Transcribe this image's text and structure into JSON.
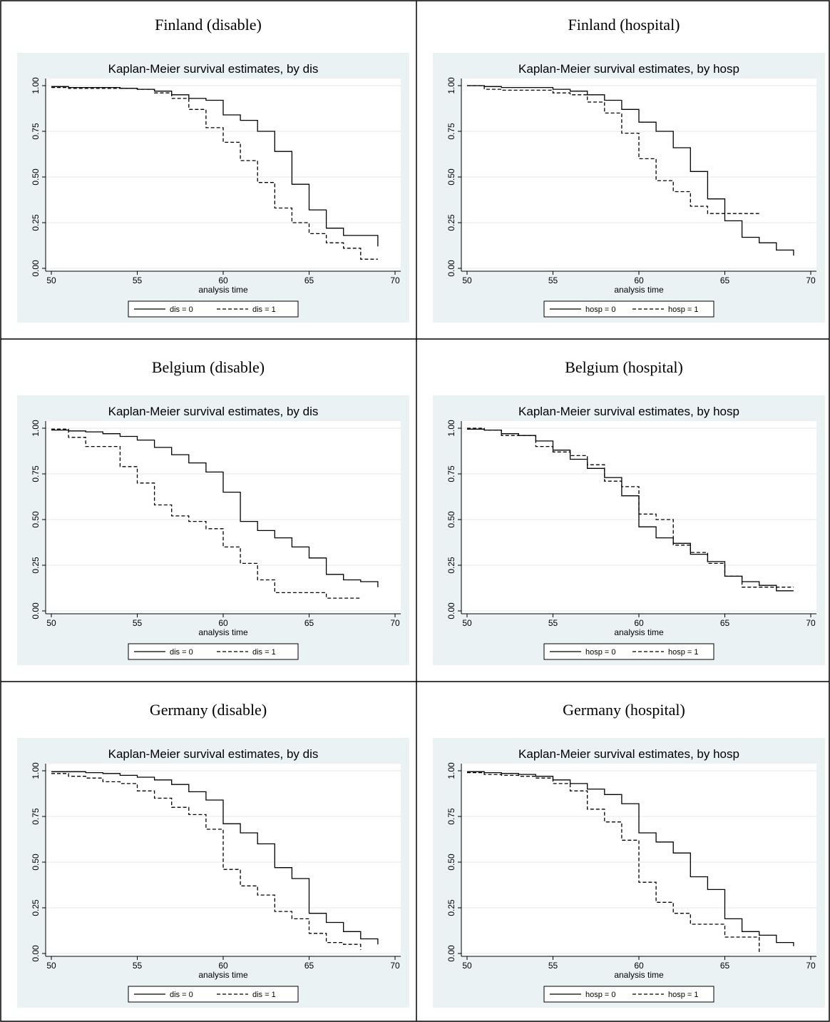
{
  "panels": [
    {
      "title": "Finland (disable)"
    },
    {
      "title": "Finland (hospital)"
    },
    {
      "title": "Belgium (disable)"
    },
    {
      "title": "Belgium (hospital)"
    },
    {
      "title": "Germany (disable)"
    },
    {
      "title": "Germany (hospital)"
    }
  ],
  "chart_data": [
    {
      "type": "line",
      "title": "Kaplan-Meier survival estimates, by dis",
      "xlabel": "analysis time",
      "ylabel": "",
      "xlim": [
        50,
        70
      ],
      "ylim": [
        0,
        1
      ],
      "xticks": [
        "50",
        "55",
        "60",
        "65",
        "70"
      ],
      "yticks": [
        "0.00",
        "0.25",
        "0.50",
        "0.75",
        "1.00"
      ],
      "grid": true,
      "legend_position": "bottom",
      "series": [
        {
          "name": "dis = 0",
          "style": "solid",
          "x": [
            50,
            51,
            52,
            53,
            54,
            55,
            56,
            57,
            58,
            59,
            60,
            61,
            62,
            63,
            64,
            65,
            66,
            67,
            68,
            69
          ],
          "y": [
            0.995,
            0.99,
            0.99,
            0.99,
            0.985,
            0.98,
            0.97,
            0.95,
            0.93,
            0.92,
            0.84,
            0.81,
            0.75,
            0.64,
            0.46,
            0.32,
            0.22,
            0.18,
            0.18,
            0.12
          ]
        },
        {
          "name": "dis = 1",
          "style": "dashed",
          "x": [
            50,
            51,
            52,
            53,
            54,
            55,
            56,
            57,
            58,
            59,
            60,
            61,
            62,
            63,
            64,
            65,
            66,
            67,
            68,
            69
          ],
          "y": [
            0.99,
            0.985,
            0.985,
            0.985,
            0.985,
            0.98,
            0.96,
            0.93,
            0.87,
            0.77,
            0.69,
            0.59,
            0.47,
            0.33,
            0.25,
            0.19,
            0.14,
            0.11,
            0.05,
            0.05
          ]
        }
      ]
    },
    {
      "type": "line",
      "title": "Kaplan-Meier survival estimates, by hosp",
      "xlabel": "analysis time",
      "ylabel": "",
      "xlim": [
        50,
        70
      ],
      "ylim": [
        0,
        1
      ],
      "xticks": [
        "50",
        "55",
        "60",
        "65",
        "70"
      ],
      "yticks": [
        "0.00",
        "0.25",
        "0.50",
        "0.75",
        "1.00"
      ],
      "grid": true,
      "legend_position": "bottom",
      "series": [
        {
          "name": "hosp = 0",
          "style": "solid",
          "x": [
            50,
            51,
            52,
            53,
            54,
            55,
            56,
            57,
            58,
            59,
            60,
            61,
            62,
            63,
            64,
            65,
            66,
            67,
            68,
            69
          ],
          "y": [
            1.0,
            0.995,
            0.99,
            0.99,
            0.99,
            0.98,
            0.97,
            0.95,
            0.92,
            0.87,
            0.8,
            0.75,
            0.66,
            0.53,
            0.38,
            0.26,
            0.17,
            0.14,
            0.1,
            0.07
          ]
        },
        {
          "name": "hosp = 1",
          "style": "dashed",
          "x": [
            50,
            51,
            52,
            53,
            54,
            55,
            56,
            57,
            58,
            59,
            60,
            61,
            62,
            63,
            64,
            65,
            66,
            67
          ],
          "y": [
            1.0,
            0.98,
            0.975,
            0.975,
            0.975,
            0.96,
            0.95,
            0.91,
            0.85,
            0.74,
            0.6,
            0.48,
            0.42,
            0.34,
            0.3,
            0.3,
            0.3,
            0.3
          ]
        }
      ]
    },
    {
      "type": "line",
      "title": "Kaplan-Meier survival estimates, by dis",
      "xlabel": "analysis time",
      "ylabel": "",
      "xlim": [
        50,
        70
      ],
      "ylim": [
        0,
        1
      ],
      "xticks": [
        "50",
        "55",
        "60",
        "65",
        "70"
      ],
      "yticks": [
        "0.00",
        "0.25",
        "0.50",
        "0.75",
        "1.00"
      ],
      "grid": true,
      "legend_position": "bottom",
      "series": [
        {
          "name": "dis = 0",
          "style": "solid",
          "x": [
            50,
            51,
            52,
            53,
            54,
            55,
            56,
            57,
            58,
            59,
            60,
            61,
            62,
            63,
            64,
            65,
            66,
            67,
            68,
            69
          ],
          "y": [
            0.99,
            0.985,
            0.98,
            0.97,
            0.955,
            0.935,
            0.895,
            0.855,
            0.81,
            0.76,
            0.65,
            0.49,
            0.44,
            0.4,
            0.35,
            0.29,
            0.2,
            0.17,
            0.16,
            0.13
          ]
        },
        {
          "name": "dis = 1",
          "style": "dashed",
          "x": [
            50,
            51,
            52,
            53,
            54,
            55,
            56,
            57,
            58,
            59,
            60,
            61,
            62,
            63,
            64,
            65,
            66,
            67,
            68
          ],
          "y": [
            0.995,
            0.95,
            0.9,
            0.9,
            0.79,
            0.7,
            0.58,
            0.52,
            0.49,
            0.45,
            0.35,
            0.26,
            0.17,
            0.1,
            0.1,
            0.1,
            0.07,
            0.07,
            0.07
          ]
        }
      ]
    },
    {
      "type": "line",
      "title": "Kaplan-Meier survival estimates, by hosp",
      "xlabel": "analysis time",
      "ylabel": "",
      "xlim": [
        50,
        70
      ],
      "ylim": [
        0,
        1
      ],
      "xticks": [
        "50",
        "55",
        "60",
        "65",
        "70"
      ],
      "yticks": [
        "0.00",
        "0.25",
        "0.50",
        "0.75",
        "1.00"
      ],
      "grid": true,
      "legend_position": "bottom",
      "series": [
        {
          "name": "hosp = 0",
          "style": "solid",
          "x": [
            50,
            51,
            52,
            53,
            54,
            55,
            56,
            57,
            58,
            59,
            60,
            61,
            62,
            63,
            64,
            65,
            66,
            67,
            68,
            69
          ],
          "y": [
            0.995,
            0.99,
            0.97,
            0.96,
            0.93,
            0.88,
            0.83,
            0.78,
            0.73,
            0.63,
            0.46,
            0.4,
            0.37,
            0.31,
            0.27,
            0.19,
            0.16,
            0.14,
            0.11,
            0.11
          ]
        },
        {
          "name": "hosp = 1",
          "style": "dashed",
          "x": [
            50,
            51,
            52,
            53,
            54,
            55,
            56,
            57,
            58,
            59,
            60,
            61,
            62,
            63,
            64,
            65,
            66,
            67,
            68,
            69
          ],
          "y": [
            1.0,
            0.99,
            0.96,
            0.96,
            0.9,
            0.87,
            0.85,
            0.8,
            0.71,
            0.68,
            0.53,
            0.5,
            0.36,
            0.32,
            0.26,
            0.19,
            0.13,
            0.13,
            0.13,
            0.13
          ]
        }
      ]
    },
    {
      "type": "line",
      "title": "Kaplan-Meier survival estimates, by dis",
      "xlabel": "analysis time",
      "ylabel": "",
      "xlim": [
        50,
        70
      ],
      "ylim": [
        0,
        1
      ],
      "xticks": [
        "50",
        "55",
        "60",
        "65",
        "70"
      ],
      "yticks": [
        "0.00",
        "0.25",
        "0.50",
        "0.75",
        "1.00"
      ],
      "grid": true,
      "legend_position": "bottom",
      "series": [
        {
          "name": "dis = 0",
          "style": "solid",
          "x": [
            50,
            51,
            52,
            53,
            54,
            55,
            56,
            57,
            58,
            59,
            60,
            61,
            62,
            63,
            64,
            65,
            66,
            67,
            68,
            69
          ],
          "y": [
            0.995,
            0.995,
            0.99,
            0.985,
            0.975,
            0.965,
            0.95,
            0.925,
            0.885,
            0.84,
            0.71,
            0.66,
            0.6,
            0.47,
            0.41,
            0.22,
            0.17,
            0.12,
            0.08,
            0.05
          ]
        },
        {
          "name": "dis = 1",
          "style": "dashed",
          "x": [
            50,
            51,
            52,
            53,
            54,
            55,
            56,
            57,
            58,
            59,
            60,
            61,
            62,
            63,
            64,
            65,
            66,
            67,
            68
          ],
          "y": [
            0.985,
            0.97,
            0.96,
            0.94,
            0.93,
            0.89,
            0.85,
            0.8,
            0.76,
            0.68,
            0.46,
            0.37,
            0.32,
            0.23,
            0.19,
            0.11,
            0.06,
            0.05,
            0.02
          ]
        }
      ]
    },
    {
      "type": "line",
      "title": "Kaplan-Meier survival estimates, by hosp",
      "xlabel": "analysis time",
      "ylabel": "",
      "xlim": [
        50,
        70
      ],
      "ylim": [
        0,
        1
      ],
      "xticks": [
        "50",
        "55",
        "60",
        "65",
        "70"
      ],
      "yticks": [
        "0.00",
        "0.25",
        "0.50",
        "0.75",
        "1.00"
      ],
      "grid": true,
      "legend_position": "bottom",
      "series": [
        {
          "name": "hosp = 0",
          "style": "solid",
          "x": [
            50,
            51,
            52,
            53,
            54,
            55,
            56,
            57,
            58,
            59,
            60,
            61,
            62,
            63,
            64,
            65,
            66,
            67,
            68,
            69
          ],
          "y": [
            0.995,
            0.99,
            0.985,
            0.98,
            0.97,
            0.95,
            0.93,
            0.9,
            0.87,
            0.82,
            0.66,
            0.61,
            0.55,
            0.42,
            0.35,
            0.19,
            0.12,
            0.1,
            0.06,
            0.04
          ]
        },
        {
          "name": "hosp = 1",
          "style": "dashed",
          "x": [
            50,
            51,
            52,
            53,
            54,
            55,
            56,
            57,
            58,
            59,
            60,
            61,
            62,
            63,
            64,
            65,
            66,
            67
          ],
          "y": [
            0.99,
            0.98,
            0.975,
            0.97,
            0.96,
            0.93,
            0.89,
            0.79,
            0.72,
            0.62,
            0.39,
            0.28,
            0.22,
            0.16,
            0.16,
            0.09,
            0.09,
            0.0
          ]
        }
      ]
    }
  ]
}
